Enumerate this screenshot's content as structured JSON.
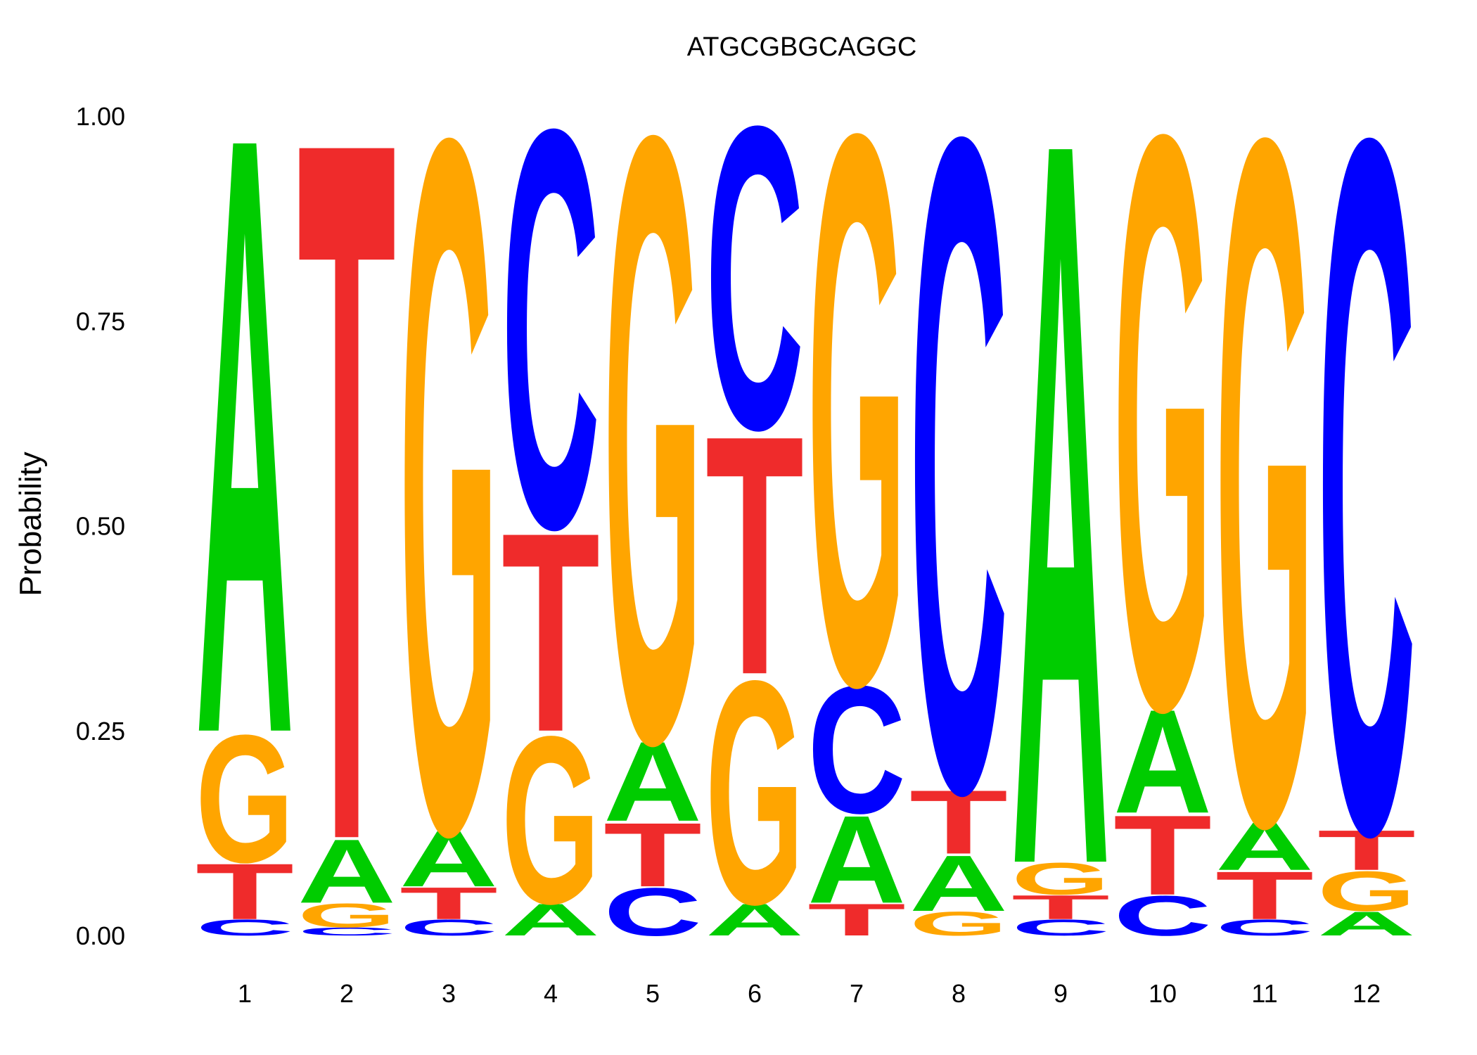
{
  "chart_data": {
    "type": "sequence-logo",
    "title": "ATGCGBGCAGGC",
    "xlabel": "",
    "ylabel": "Probability",
    "ylim": [
      0,
      1
    ],
    "yticks": [
      "0.00",
      "0.25",
      "0.50",
      "0.75",
      "1.00"
    ],
    "yticks_values": [
      0,
      0.25,
      0.5,
      0.75,
      1.0
    ],
    "positions": [
      "1",
      "2",
      "3",
      "4",
      "5",
      "6",
      "7",
      "8",
      "9",
      "10",
      "11",
      "12"
    ],
    "colors": {
      "A": "#00cc00",
      "C": "#0000ff",
      "G": "#ffa500",
      "T": "#ef2b2b"
    },
    "columns": [
      {
        "position": "1",
        "letters": [
          {
            "base": "C",
            "p": 0.02
          },
          {
            "base": "T",
            "p": 0.07
          },
          {
            "base": "G",
            "p": 0.16
          },
          {
            "base": "A",
            "p": 0.75
          }
        ]
      },
      {
        "position": "2",
        "letters": [
          {
            "base": "C",
            "p": 0.01
          },
          {
            "base": "G",
            "p": 0.03
          },
          {
            "base": "A",
            "p": 0.08
          },
          {
            "base": "T",
            "p": 0.88
          }
        ]
      },
      {
        "position": "3",
        "letters": [
          {
            "base": "C",
            "p": 0.02
          },
          {
            "base": "T",
            "p": 0.04
          },
          {
            "base": "A",
            "p": 0.07
          },
          {
            "base": "G",
            "p": 0.87
          }
        ]
      },
      {
        "position": "4",
        "letters": [
          {
            "base": "A",
            "p": 0.04
          },
          {
            "base": "G",
            "p": 0.21
          },
          {
            "base": "T",
            "p": 0.25
          },
          {
            "base": "C",
            "p": 0.5
          }
        ]
      },
      {
        "position": "5",
        "letters": [
          {
            "base": "C",
            "p": 0.06
          },
          {
            "base": "T",
            "p": 0.08
          },
          {
            "base": "A",
            "p": 0.1
          },
          {
            "base": "G",
            "p": 0.76
          }
        ]
      },
      {
        "position": "6",
        "letters": [
          {
            "base": "A",
            "p": 0.04
          },
          {
            "base": "G",
            "p": 0.28
          },
          {
            "base": "T",
            "p": 0.3
          },
          {
            "base": "C",
            "p": 0.38
          }
        ]
      },
      {
        "position": "7",
        "letters": [
          {
            "base": "T",
            "p": 0.04
          },
          {
            "base": "A",
            "p": 0.11
          },
          {
            "base": "C",
            "p": 0.16
          },
          {
            "base": "G",
            "p": 0.69
          }
        ]
      },
      {
        "position": "8",
        "letters": [
          {
            "base": "G",
            "p": 0.03
          },
          {
            "base": "A",
            "p": 0.07
          },
          {
            "base": "T",
            "p": 0.08
          },
          {
            "base": "C",
            "p": 0.82
          }
        ]
      },
      {
        "position": "9",
        "letters": [
          {
            "base": "C",
            "p": 0.02
          },
          {
            "base": "T",
            "p": 0.03
          },
          {
            "base": "G",
            "p": 0.04
          },
          {
            "base": "A",
            "p": 0.91
          }
        ]
      },
      {
        "position": "10",
        "letters": [
          {
            "base": "C",
            "p": 0.05
          },
          {
            "base": "T",
            "p": 0.1
          },
          {
            "base": "A",
            "p": 0.13
          },
          {
            "base": "G",
            "p": 0.72
          }
        ]
      },
      {
        "position": "11",
        "letters": [
          {
            "base": "C",
            "p": 0.02
          },
          {
            "base": "T",
            "p": 0.06
          },
          {
            "base": "A",
            "p": 0.06
          },
          {
            "base": "G",
            "p": 0.86
          }
        ]
      },
      {
        "position": "12",
        "letters": [
          {
            "base": "A",
            "p": 0.03
          },
          {
            "base": "G",
            "p": 0.05
          },
          {
            "base": "T",
            "p": 0.05
          },
          {
            "base": "C",
            "p": 0.87
          }
        ]
      }
    ]
  }
}
